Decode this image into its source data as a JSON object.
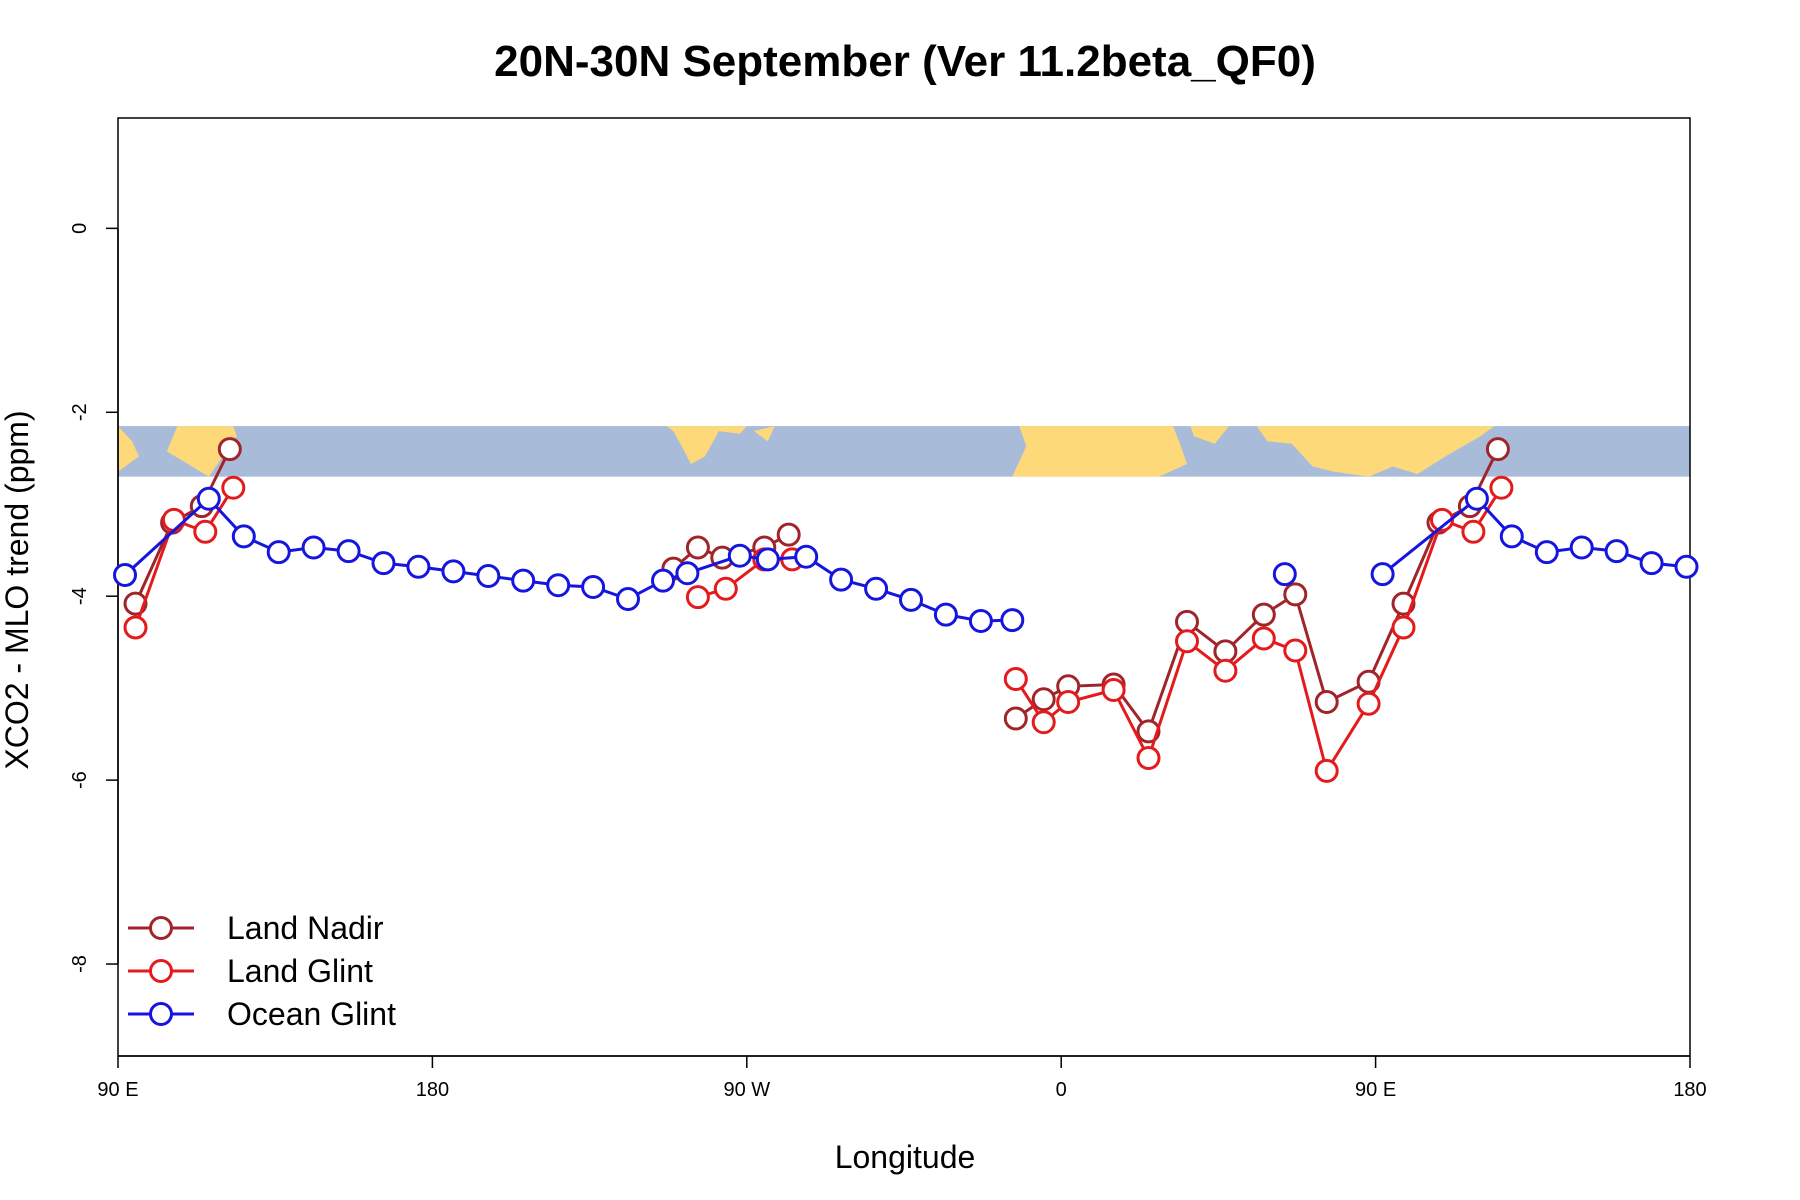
{
  "chart_data": {
    "type": "line",
    "title": "20N-30N September (Ver 11.2beta_QF0)",
    "xlabel": "Longitude",
    "ylabel": "XCO2 - MLO trend (ppm)",
    "xlim": [
      90,
      540
    ],
    "ylim": [
      -9.0,
      1.2
    ],
    "xticks": [
      {
        "value": 90,
        "label": "90 E"
      },
      {
        "value": 180,
        "label": "180"
      },
      {
        "value": 270,
        "label": "90 W"
      },
      {
        "value": 360,
        "label": "0"
      },
      {
        "value": 450,
        "label": "90 E"
      },
      {
        "value": 540,
        "label": "180"
      }
    ],
    "yticks": [
      {
        "value": 0,
        "label": "0"
      },
      {
        "value": -2,
        "label": "-2"
      },
      {
        "value": -4,
        "label": "-4"
      },
      {
        "value": -6,
        "label": "-6"
      },
      {
        "value": -8,
        "label": "-8"
      }
    ],
    "map_band": {
      "y_top": -2.15,
      "y_bottom": -2.7,
      "ocean_color": "#a8bcd9",
      "land_color": "#fdd97a"
    },
    "legend_position": "bottom-left",
    "series": [
      {
        "name": "Land Nadir",
        "color": "#a0252b",
        "segments": [
          [
            [
              95,
              -4.08
            ],
            [
              105.5,
              -3.2
            ],
            [
              114,
              -3.02
            ],
            [
              122,
              -2.4
            ]
          ],
          [
            [
              249,
              -3.7
            ],
            [
              256,
              -3.47
            ],
            [
              263,
              -3.58
            ],
            [
              275,
              -3.47
            ],
            [
              282,
              -3.33
            ]
          ],
          [
            [
              347,
              -5.33
            ],
            [
              355,
              -5.12
            ],
            [
              362,
              -4.98
            ],
            [
              375,
              -4.96
            ],
            [
              385,
              -5.47
            ],
            [
              396,
              -4.28
            ],
            [
              407,
              -4.6
            ],
            [
              418,
              -4.2
            ],
            [
              427,
              -3.98
            ],
            [
              436,
              -5.15
            ],
            [
              448,
              -4.93
            ],
            [
              458,
              -4.08
            ],
            [
              468,
              -3.2
            ],
            [
              477,
              -3.02
            ],
            [
              485,
              -2.4
            ]
          ]
        ]
      },
      {
        "name": "Land Glint",
        "color": "#e41a1c",
        "segments": [
          [
            [
              95,
              -4.34
            ],
            [
              106,
              -3.17
            ],
            [
              115,
              -3.3
            ],
            [
              123,
              -2.82
            ]
          ],
          [
            [
              256,
              -4.01
            ],
            [
              264,
              -3.92
            ],
            [
              275,
              -3.6
            ],
            [
              283,
              -3.6
            ]
          ],
          [
            [
              347,
              -4.9
            ],
            [
              355,
              -5.37
            ],
            [
              362,
              -5.15
            ],
            [
              375,
              -5.02
            ],
            [
              385,
              -5.76
            ],
            [
              396,
              -4.49
            ],
            [
              407,
              -4.81
            ],
            [
              418,
              -4.46
            ],
            [
              427,
              -4.59
            ],
            [
              436,
              -5.9
            ],
            [
              448,
              -5.17
            ],
            [
              458,
              -4.34
            ],
            [
              469,
              -3.17
            ],
            [
              478,
              -3.3
            ],
            [
              486,
              -2.82
            ]
          ]
        ]
      },
      {
        "name": "Ocean Glint",
        "color": "#1515e0",
        "segments": [
          [
            [
              92,
              -3.77
            ],
            [
              116,
              -2.94
            ],
            [
              126,
              -3.35
            ],
            [
              136,
              -3.52
            ],
            [
              146,
              -3.47
            ],
            [
              156,
              -3.51
            ],
            [
              166,
              -3.64
            ],
            [
              176,
              -3.68
            ],
            [
              186,
              -3.73
            ],
            [
              196,
              -3.78
            ],
            [
              206,
              -3.83
            ],
            [
              216,
              -3.88
            ],
            [
              226,
              -3.9
            ],
            [
              236,
              -4.03
            ],
            [
              246,
              -3.83
            ],
            [
              253,
              -3.75
            ],
            [
              268,
              -3.56
            ],
            [
              276,
              -3.6
            ],
            [
              287,
              -3.57
            ],
            [
              297,
              -3.82
            ],
            [
              307,
              -3.92
            ],
            [
              317,
              -4.04
            ],
            [
              327,
              -4.2
            ],
            [
              337,
              -4.27
            ],
            [
              346,
              -4.26
            ]
          ],
          [
            [
              424,
              -3.76
            ]
          ],
          [
            [
              452,
              -3.76
            ],
            [
              479,
              -2.94
            ],
            [
              489,
              -3.35
            ],
            [
              499,
              -3.52
            ],
            [
              509,
              -3.47
            ],
            [
              519,
              -3.51
            ],
            [
              529,
              -3.64
            ],
            [
              539,
              -3.68
            ]
          ]
        ]
      }
    ]
  }
}
